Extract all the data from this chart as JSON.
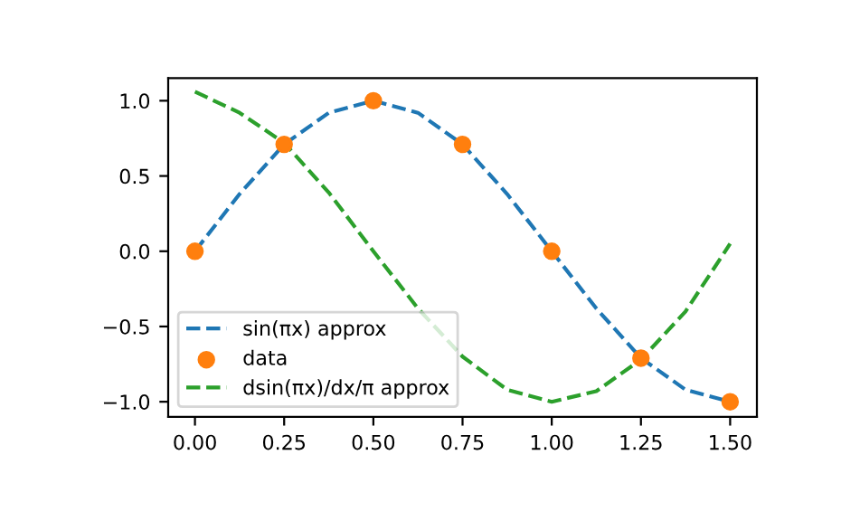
{
  "chart_data": {
    "type": "line",
    "xlim": [
      -0.075,
      1.575
    ],
    "ylim": [
      -1.1,
      1.15
    ],
    "xticks": [
      {
        "value": 0,
        "label": "0.00"
      },
      {
        "value": 0.25,
        "label": "0.25"
      },
      {
        "value": 0.5,
        "label": "0.50"
      },
      {
        "value": 0.75,
        "label": "0.75"
      },
      {
        "value": 1.0,
        "label": "1.00"
      },
      {
        "value": 1.25,
        "label": "1.25"
      },
      {
        "value": 1.5,
        "label": "1.50"
      }
    ],
    "yticks": [
      {
        "value": -1,
        "label": "−1.0"
      },
      {
        "value": -0.5,
        "label": "−0.5"
      },
      {
        "value": 0,
        "label": "0.0"
      },
      {
        "value": 0.5,
        "label": "0.5"
      },
      {
        "value": 1,
        "label": "1.0"
      }
    ],
    "legend": "bottom left",
    "grid": false,
    "series": [
      {
        "name": "sin(πx) approx",
        "line_style": "dashed",
        "color": "#1f77b4",
        "x": [
          0,
          0.125,
          0.25,
          0.375,
          0.5,
          0.625,
          0.75,
          0.875,
          1.0,
          1.125,
          1.25,
          1.375,
          1.5
        ],
        "values": [
          0,
          0.38,
          0.71,
          0.92,
          1.0,
          0.92,
          0.71,
          0.38,
          0,
          -0.38,
          -0.71,
          -0.92,
          -1.0
        ]
      },
      {
        "name": "data",
        "type": "scatter",
        "marker": "circle",
        "color": "#ff7f0e",
        "x": [
          0,
          0.25,
          0.5,
          0.75,
          1.0,
          1.25,
          1.5
        ],
        "values": [
          0,
          0.71,
          1.0,
          0.71,
          0,
          -0.71,
          -1.0
        ]
      },
      {
        "name": "dsin(πx)/dx/π approx",
        "line_style": "dashed",
        "color": "#2ca02c",
        "x": [
          0,
          0.125,
          0.25,
          0.375,
          0.5,
          0.625,
          0.75,
          0.875,
          1.0,
          1.125,
          1.25,
          1.375,
          1.5
        ],
        "values": [
          1.06,
          0.92,
          0.72,
          0.39,
          0.0,
          -0.38,
          -0.7,
          -0.92,
          -1.0,
          -0.93,
          -0.72,
          -0.4,
          0.05
        ]
      }
    ]
  }
}
